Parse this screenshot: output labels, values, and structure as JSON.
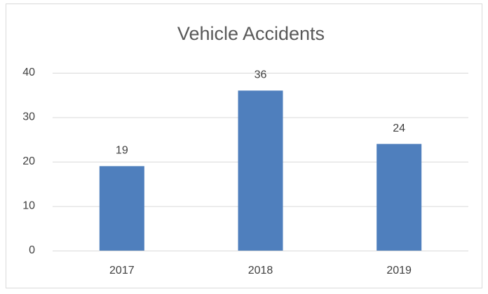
{
  "chart_data": {
    "type": "bar",
    "title": "Vehicle Accidents",
    "categories": [
      "2017",
      "2018",
      "2019"
    ],
    "values": [
      19,
      36,
      24
    ],
    "color": "#4f7fbd",
    "ylim": [
      0,
      40
    ],
    "yticks": [
      0,
      10,
      20,
      30,
      40
    ],
    "grid": true
  }
}
